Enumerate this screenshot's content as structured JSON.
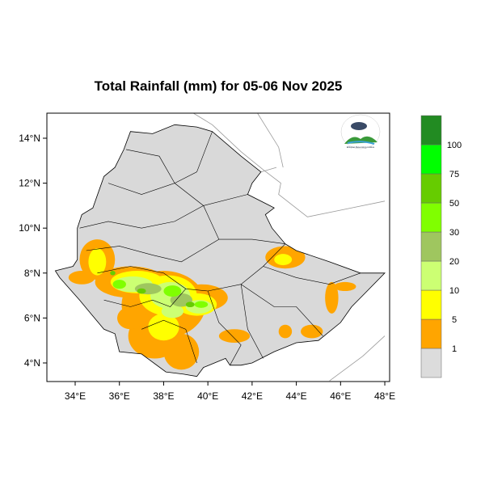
{
  "title": "Total Rainfall (mm) for 05-06 Nov 2025",
  "axes": {
    "lon_ticks": [
      "34°E",
      "36°E",
      "38°E",
      "40°E",
      "42°E",
      "44°E",
      "46°E",
      "48°E"
    ],
    "lon_values": [
      34,
      36,
      38,
      40,
      42,
      44,
      46,
      48
    ],
    "lat_ticks": [
      "14°N",
      "12°N",
      "10°N",
      "8°N",
      "6°N",
      "4°N"
    ],
    "lat_values": [
      14,
      12,
      10,
      8,
      6,
      4
    ]
  },
  "legend": {
    "labels": [
      "1",
      "5",
      "10",
      "20",
      "30",
      "50",
      "75",
      "100"
    ],
    "colors": [
      "#dcdcdc",
      "#ffa500",
      "#ffff00",
      "#ccff73",
      "#9fc65f",
      "#80ff00",
      "#66cc00",
      "#00ff00",
      "#228b22"
    ]
  },
  "logo": {
    "text": "Ethiopian Meteorology Institute"
  },
  "colors": {
    "land": "#d9d9d9",
    "border": "#000000",
    "neighbor": "#999999"
  }
}
